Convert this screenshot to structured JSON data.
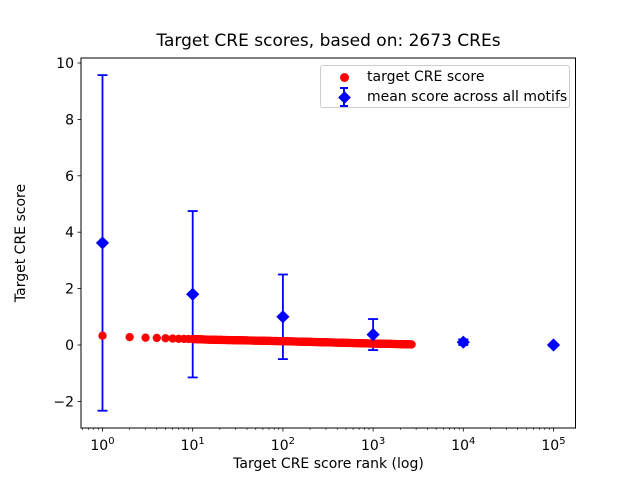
{
  "chart_data": {
    "type": "scatter",
    "title": "Target CRE scores, based on: 2673 CREs",
    "xlabel": "Target CRE score rank (log)",
    "ylabel": "Target CRE score",
    "x_scale": "log",
    "xlim": [
      0.56,
      177828
    ],
    "ylim": [
      -2.94,
      10.18
    ],
    "x_ticks": [
      1,
      10,
      100,
      1000,
      10000,
      100000
    ],
    "x_tick_labels": [
      {
        "base": "10",
        "exp": "0"
      },
      {
        "base": "10",
        "exp": "1"
      },
      {
        "base": "10",
        "exp": "2"
      },
      {
        "base": "10",
        "exp": "3"
      },
      {
        "base": "10",
        "exp": "4"
      },
      {
        "base": "10",
        "exp": "5"
      }
    ],
    "y_ticks": [
      -2,
      0,
      2,
      4,
      6,
      8,
      10
    ],
    "y_tick_labels": [
      "−2",
      "0",
      "2",
      "4",
      "6",
      "8",
      "10"
    ],
    "grid": false,
    "legend_position": "upper right",
    "legend": [
      {
        "label": "target CRE score",
        "marker": "circle",
        "color": "#ff0000"
      },
      {
        "label": "mean score across all motifs",
        "marker": "diamond-errorbar",
        "color": "#0000ff"
      }
    ],
    "series": [
      {
        "name": "target CRE score",
        "type": "scatter",
        "marker": "circle",
        "color": "#ff0000",
        "n_points": 2673,
        "note": "2673 dots, ranks 1..2673, dense band; sampled anchor points [rank, score]",
        "sampled_points": [
          [
            1,
            0.33
          ],
          [
            2,
            0.28
          ],
          [
            3,
            0.26
          ],
          [
            4,
            0.25
          ],
          [
            5,
            0.24
          ],
          [
            7,
            0.22
          ],
          [
            10,
            0.21
          ],
          [
            15,
            0.19
          ],
          [
            20,
            0.18
          ],
          [
            30,
            0.17
          ],
          [
            50,
            0.155
          ],
          [
            70,
            0.145
          ],
          [
            100,
            0.135
          ],
          [
            150,
            0.12
          ],
          [
            200,
            0.11
          ],
          [
            300,
            0.095
          ],
          [
            500,
            0.075
          ],
          [
            700,
            0.065
          ],
          [
            1000,
            0.05
          ],
          [
            1500,
            0.04
          ],
          [
            2000,
            0.03
          ],
          [
            2673,
            0.02
          ]
        ]
      },
      {
        "name": "mean score across all motifs",
        "type": "errorbar",
        "marker": "diamond",
        "color": "#0000ff",
        "points": [
          {
            "x": 1,
            "mean": 3.62,
            "err": 5.95
          },
          {
            "x": 10,
            "mean": 1.8,
            "err": 2.95
          },
          {
            "x": 100,
            "mean": 1.0,
            "err": 1.5
          },
          {
            "x": 1000,
            "mean": 0.37,
            "err": 0.55
          },
          {
            "x": 10000,
            "mean": 0.1,
            "err": 0.1
          },
          {
            "x": 100000,
            "mean": 0.0,
            "err": 0.04
          }
        ]
      }
    ]
  }
}
